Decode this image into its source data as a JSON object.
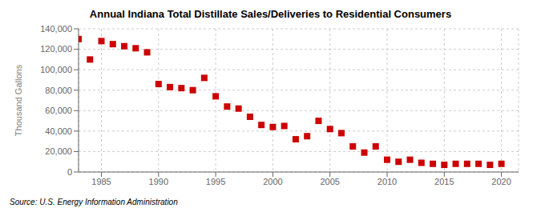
{
  "chart_data": {
    "type": "scatter",
    "title": "Annual Indiana Total Distillate Sales/Deliveries to Residential Consumers",
    "ylabel": "Thousand Gallons",
    "annotations": [
      "Source: U.S. Energy Information Administration"
    ],
    "x": [
      1983,
      1984,
      1985,
      1986,
      1987,
      1988,
      1989,
      1990,
      1991,
      1992,
      1993,
      1994,
      1995,
      1996,
      1997,
      1998,
      1999,
      2000,
      2001,
      2002,
      2003,
      2004,
      2005,
      2006,
      2007,
      2008,
      2009,
      2010,
      2011,
      2012,
      2013,
      2014,
      2015,
      2016,
      2017,
      2018,
      2019,
      2020
    ],
    "values": [
      130000,
      110000,
      128000,
      125000,
      123000,
      121000,
      117000,
      86000,
      83000,
      82000,
      80000,
      92000,
      74000,
      64000,
      62000,
      54000,
      46000,
      44000,
      45000,
      32000,
      35000,
      50000,
      42000,
      38000,
      25000,
      19000,
      25000,
      12000,
      10000,
      12000,
      9000,
      8000,
      7000,
      8000,
      8000,
      8000,
      7000,
      8000
    ],
    "color": "#cc0000",
    "marker": "square",
    "grid": true,
    "xlim": [
      1983,
      2021.5
    ],
    "ylim": [
      0,
      140000
    ],
    "xticks": [
      1985,
      1990,
      1995,
      2000,
      2005,
      2010,
      2015,
      2020
    ],
    "yticks": [
      0,
      {
        "value": 20000,
        "label": "20,000"
      },
      {
        "value": 40000,
        "label": "40,000"
      },
      {
        "value": 60000,
        "label": "60,000"
      },
      {
        "value": 80000,
        "label": "80,000"
      },
      {
        "value": 100000,
        "label": "100,000"
      },
      {
        "value": 120000,
        "label": "120,000"
      },
      {
        "value": 140000,
        "label": "140,000"
      }
    ]
  }
}
